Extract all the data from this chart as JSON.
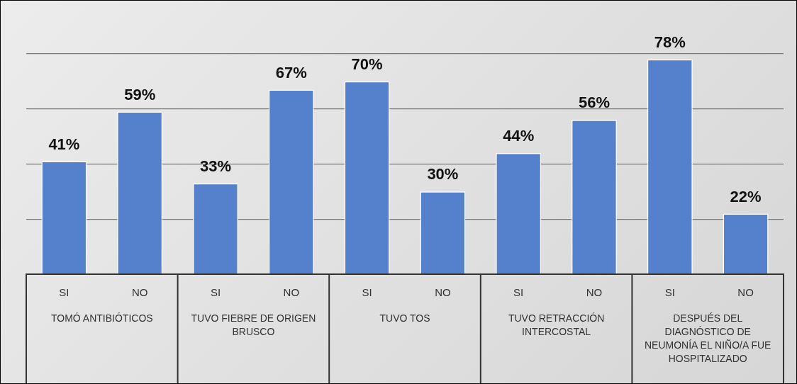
{
  "chart_data": {
    "type": "bar",
    "categories": [
      "SI",
      "NO",
      "SI",
      "NO",
      "SI",
      "NO",
      "SI",
      "NO",
      "SI",
      "NO"
    ],
    "values": [
      41,
      59,
      33,
      67,
      70,
      30,
      44,
      56,
      78,
      22
    ],
    "value_labels": [
      "41%",
      "59%",
      "33%",
      "67%",
      "70%",
      "30%",
      "44%",
      "56%",
      "78%",
      "22%"
    ],
    "color": "#5580cc",
    "grid": "y",
    "tick_labels": "x",
    "legend": false,
    "annotations": [
      "TOMÓ  ANTIBIÓTICOS",
      "TUVO FIEBRE DE ORIGEN BRUSCO",
      "TUVO TOS",
      "TUVO RETRACCIÓN INTERCOSTAL",
      "DESPUÉS DEL DIAGNÓSTICO DE NEUMONÍA EL NIÑO/A FUE HOSPITALIZADO"
    ]
  }
}
